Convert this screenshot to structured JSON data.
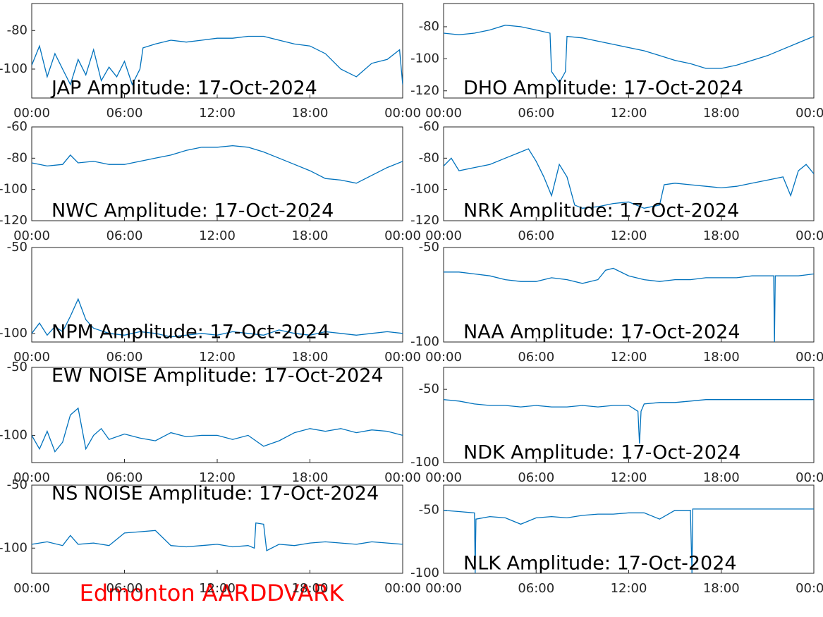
{
  "chart_data": [
    {
      "type": "line",
      "title": "JAP Amplitude: 17-Oct-2024",
      "xlim": [
        0,
        24
      ],
      "ylim": [
        -115,
        -66
      ],
      "xticks": [
        {
          "value": 0,
          "label": "00:00"
        },
        {
          "value": 6,
          "label": "06:00"
        },
        {
          "value": 12,
          "label": "12:00"
        },
        {
          "value": 18,
          "label": "18:00"
        },
        {
          "value": 24,
          "label": "00:00"
        }
      ],
      "yticks": [
        -80,
        -100
      ],
      "series": [
        {
          "color": "#0072bd",
          "x": [
            0,
            0.5,
            1,
            1.5,
            2,
            2.5,
            3,
            3.5,
            4,
            4.5,
            5,
            5.5,
            6,
            6.5,
            7,
            7.2,
            8,
            9,
            10,
            11,
            12,
            13,
            14,
            15,
            16,
            17,
            18,
            19,
            20,
            21,
            22,
            23,
            23.8,
            24
          ],
          "values": [
            -98,
            -88,
            -104,
            -92,
            -100,
            -108,
            -95,
            -103,
            -90,
            -106,
            -99,
            -104,
            -96,
            -108,
            -100,
            -89,
            -87,
            -85,
            -86,
            -85,
            -84,
            -84,
            -83,
            -83,
            -85,
            -87,
            -88,
            -92,
            -100,
            -104,
            -97,
            -95,
            -90,
            -108
          ]
        }
      ]
    },
    {
      "type": "line",
      "title": "DHO Amplitude: 17-Oct-2024",
      "xlim": [
        0,
        24
      ],
      "ylim": [
        -124.5,
        -65.5
      ],
      "xticks": [
        {
          "value": 0,
          "label": "00:00"
        },
        {
          "value": 6,
          "label": "06:00"
        },
        {
          "value": 12,
          "label": "12:00"
        },
        {
          "value": 18,
          "label": "18:00"
        },
        {
          "value": 24,
          "label": "00:00"
        }
      ],
      "yticks": [
        -80,
        -100,
        -120
      ],
      "series": [
        {
          "color": "#0072bd",
          "x": [
            0,
            1,
            2,
            3,
            4,
            5,
            6,
            6.9,
            7.0,
            7.5,
            7.9,
            8.0,
            9,
            10,
            11,
            12,
            13,
            14,
            15,
            16,
            17,
            18,
            19,
            20,
            21,
            22,
            23,
            24
          ],
          "values": [
            -84,
            -85,
            -84,
            -82,
            -79,
            -80,
            -82,
            -84,
            -108,
            -115,
            -108,
            -86,
            -87,
            -89,
            -91,
            -93,
            -95,
            -98,
            -101,
            -103,
            -106,
            -106,
            -104,
            -101,
            -98,
            -94,
            -90,
            -86
          ]
        }
      ]
    },
    {
      "type": "line",
      "title": "NWC Amplitude: 17-Oct-2024",
      "xlim": [
        0,
        24
      ],
      "ylim": [
        -120,
        -60
      ],
      "xticks": [
        {
          "value": 0,
          "label": "00:00"
        },
        {
          "value": 6,
          "label": "06:00"
        },
        {
          "value": 12,
          "label": "12:00"
        },
        {
          "value": 18,
          "label": "18:00"
        },
        {
          "value": 24,
          "label": "00:00"
        }
      ],
      "yticks": [
        -60,
        -80,
        -100,
        -120
      ],
      "series": [
        {
          "color": "#0072bd",
          "x": [
            0,
            1,
            2,
            2.5,
            3,
            4,
            5,
            6,
            7,
            8,
            9,
            10,
            11,
            12,
            13,
            14,
            15,
            16,
            17,
            18,
            19,
            20,
            21,
            22,
            23,
            24
          ],
          "values": [
            -83,
            -85,
            -84,
            -78,
            -83,
            -82,
            -84,
            -84,
            -82,
            -80,
            -78,
            -75,
            -73,
            -73,
            -72,
            -73,
            -76,
            -80,
            -84,
            -88,
            -93,
            -94,
            -96,
            -91,
            -86,
            -82
          ]
        }
      ]
    },
    {
      "type": "line",
      "title": "NRK Amplitude: 17-Oct-2024",
      "xlim": [
        0,
        24
      ],
      "ylim": [
        -120,
        -60
      ],
      "xticks": [
        {
          "value": 0,
          "label": "00:00"
        },
        {
          "value": 6,
          "label": "06:00"
        },
        {
          "value": 12,
          "label": "12:00"
        },
        {
          "value": 18,
          "label": "18:00"
        },
        {
          "value": 24,
          "label": "00:00"
        }
      ],
      "yticks": [
        -60,
        -80,
        -100,
        -120
      ],
      "series": [
        {
          "color": "#0072bd",
          "x": [
            0,
            0.5,
            1,
            2,
            3,
            4,
            5,
            5.5,
            6,
            6.5,
            7,
            7.5,
            8,
            8.5,
            9,
            10,
            11,
            12,
            13,
            14,
            14.3,
            15,
            16,
            17,
            18,
            19,
            20,
            21,
            22,
            22.5,
            23,
            23.5,
            24
          ],
          "values": [
            -85,
            -80,
            -88,
            -86,
            -84,
            -80,
            -76,
            -74,
            -82,
            -92,
            -104,
            -84,
            -92,
            -110,
            -112,
            -111,
            -109,
            -108,
            -112,
            -110,
            -97,
            -96,
            -97,
            -98,
            -99,
            -98,
            -96,
            -94,
            -92,
            -104,
            -88,
            -84,
            -90
          ]
        }
      ]
    },
    {
      "type": "line",
      "title": "NPM Amplitude: 17-Oct-2024",
      "xlim": [
        0,
        24
      ],
      "ylim": [
        -105,
        -50
      ],
      "xticks": [
        {
          "value": 0,
          "label": "00:00"
        },
        {
          "value": 6,
          "label": "06:00"
        },
        {
          "value": 12,
          "label": "12:00"
        },
        {
          "value": 18,
          "label": "18:00"
        },
        {
          "value": 24,
          "label": "00:00"
        }
      ],
      "yticks": [
        -50,
        -100
      ],
      "series": [
        {
          "color": "#0072bd",
          "x": [
            0,
            0.5,
            1,
            1.5,
            2,
            2.5,
            3,
            3.5,
            4,
            5,
            6,
            7,
            8,
            9,
            10,
            11,
            12,
            13,
            14,
            15,
            16,
            17,
            18,
            19,
            20,
            21,
            22,
            23,
            24
          ],
          "values": [
            -100,
            -94,
            -101,
            -96,
            -99,
            -90,
            -80,
            -92,
            -97,
            -100,
            -101,
            -99,
            -100,
            -102,
            -101,
            -100,
            -101,
            -99,
            -100,
            -101,
            -98,
            -100,
            -101,
            -99,
            -100,
            -101,
            -100,
            -99,
            -100
          ]
        }
      ]
    },
    {
      "type": "line",
      "title": "NAA Amplitude: 17-Oct-2024",
      "xlim": [
        0,
        24
      ],
      "ylim": [
        -100,
        -50
      ],
      "xticks": [
        {
          "value": 0,
          "label": "00:00"
        },
        {
          "value": 6,
          "label": "06:00"
        },
        {
          "value": 12,
          "label": "12:00"
        },
        {
          "value": 18,
          "label": "18:00"
        },
        {
          "value": 24,
          "label": "00:00"
        }
      ],
      "yticks": [
        -50,
        -100
      ],
      "series": [
        {
          "color": "#0072bd",
          "x": [
            0,
            1,
            2,
            3,
            4,
            5,
            6,
            7,
            8,
            9,
            10,
            10.5,
            11,
            12,
            13,
            14,
            15,
            16,
            17,
            18,
            19,
            20,
            21,
            21.4,
            21.45,
            21.5,
            22,
            23,
            24
          ],
          "values": [
            -63,
            -63,
            -64,
            -65,
            -67,
            -68,
            -68,
            -66,
            -67,
            -69,
            -67,
            -62,
            -61,
            -65,
            -67,
            -68,
            -67,
            -67,
            -66,
            -66,
            -66,
            -65,
            -65,
            -65,
            -100,
            -65,
            -65,
            -65,
            -64
          ]
        }
      ]
    },
    {
      "type": "line",
      "title": "EW NOISE Amplitude: 17-Oct-2024",
      "xlim": [
        0,
        24
      ],
      "ylim": [
        -120,
        -50
      ],
      "xticks": [
        {
          "value": 0,
          "label": "00:00"
        },
        {
          "value": 6,
          "label": "06:00"
        },
        {
          "value": 12,
          "label": "12:00"
        },
        {
          "value": 18,
          "label": "18:00"
        },
        {
          "value": 24,
          "label": "00:00"
        }
      ],
      "yticks": [
        -50,
        -100
      ],
      "series": [
        {
          "color": "#0072bd",
          "x": [
            0,
            0.5,
            1,
            1.5,
            2,
            2.5,
            3,
            3.5,
            4,
            4.5,
            5,
            6,
            7,
            8,
            9,
            10,
            11,
            12,
            13,
            14,
            15,
            16,
            17,
            18,
            19,
            20,
            21,
            22,
            23,
            24
          ],
          "values": [
            -100,
            -110,
            -97,
            -112,
            -105,
            -85,
            -80,
            -110,
            -100,
            -95,
            -103,
            -99,
            -102,
            -104,
            -98,
            -101,
            -100,
            -100,
            -103,
            -100,
            -108,
            -104,
            -98,
            -95,
            -97,
            -95,
            -98,
            -96,
            -97,
            -100
          ]
        }
      ]
    },
    {
      "type": "line",
      "title": "NDK Amplitude: 17-Oct-2024",
      "xlim": [
        0,
        24
      ],
      "ylim": [
        -100,
        -35
      ],
      "xticks": [
        {
          "value": 0,
          "label": "00:00"
        },
        {
          "value": 6,
          "label": "06:00"
        },
        {
          "value": 12,
          "label": "12:00"
        },
        {
          "value": 18,
          "label": "18:00"
        },
        {
          "value": 24,
          "label": "00:00"
        }
      ],
      "yticks": [
        -50,
        -100
      ],
      "series": [
        {
          "color": "#0072bd",
          "x": [
            0,
            1,
            2,
            3,
            4,
            5,
            6,
            7,
            8,
            9,
            10,
            11,
            12,
            12.6,
            12.7,
            12.8,
            13,
            14,
            15,
            16,
            17,
            18,
            19,
            20,
            21,
            22,
            23,
            24
          ],
          "values": [
            -57,
            -58,
            -60,
            -61,
            -61,
            -62,
            -61,
            -62,
            -62,
            -61,
            -62,
            -61,
            -61,
            -65,
            -87,
            -65,
            -60,
            -59,
            -59,
            -58,
            -57,
            -57,
            -57,
            -57,
            -57,
            -57,
            -57,
            -57
          ]
        }
      ]
    },
    {
      "type": "line",
      "title": "NS NOISE Amplitude: 17-Oct-2024",
      "xlim": [
        0,
        24
      ],
      "ylim": [
        -120,
        -50
      ],
      "xticks": [
        {
          "value": 0,
          "label": "00:00"
        },
        {
          "value": 6,
          "label": "06:00"
        },
        {
          "value": 12,
          "label": "12:00"
        },
        {
          "value": 18,
          "label": "18:00"
        },
        {
          "value": 24,
          "label": "00:00"
        }
      ],
      "yticks": [
        -50,
        -100
      ],
      "series": [
        {
          "color": "#0072bd",
          "x": [
            0,
            1,
            2,
            2.5,
            3,
            4,
            5,
            6,
            7,
            8,
            9,
            10,
            11,
            12,
            13,
            14,
            14.4,
            14.5,
            15,
            15.2,
            16,
            17,
            18,
            19,
            20,
            21,
            22,
            23,
            24
          ],
          "values": [
            -97,
            -95,
            -98,
            -90,
            -97,
            -96,
            -98,
            -88,
            -87,
            -86,
            -98,
            -99,
            -98,
            -97,
            -99,
            -98,
            -100,
            -80,
            -81,
            -102,
            -97,
            -98,
            -96,
            -95,
            -96,
            -97,
            -95,
            -96,
            -97
          ]
        }
      ]
    },
    {
      "type": "line",
      "title": "NLK Amplitude: 17-Oct-2024",
      "xlim": [
        0,
        24
      ],
      "ylim": [
        -100,
        -30
      ],
      "xticks": [
        {
          "value": 0,
          "label": "00:00"
        },
        {
          "value": 6,
          "label": "06:00"
        },
        {
          "value": 12,
          "label": "12:00"
        },
        {
          "value": 18,
          "label": "18:00"
        },
        {
          "value": 24,
          "label": "00:00"
        }
      ],
      "yticks": [
        -50,
        -100
      ],
      "series": [
        {
          "color": "#0072bd",
          "x": [
            0,
            1,
            2,
            2.05,
            2.1,
            3,
            4,
            5,
            6,
            7,
            8,
            9,
            10,
            11,
            12,
            13,
            14,
            15,
            16,
            16.1,
            16.15,
            17,
            18,
            19,
            20,
            21,
            22,
            23,
            24
          ],
          "values": [
            -50,
            -51,
            -52,
            -100,
            -57,
            -55,
            -56,
            -61,
            -56,
            -55,
            -56,
            -54,
            -53,
            -53,
            -52,
            -52,
            -57,
            -50,
            -50,
            -100,
            -49,
            -49,
            -49,
            -49,
            -49,
            -49,
            -49,
            -49,
            -49
          ]
        }
      ]
    }
  ],
  "footer": "Edmonton AARDDVARK"
}
